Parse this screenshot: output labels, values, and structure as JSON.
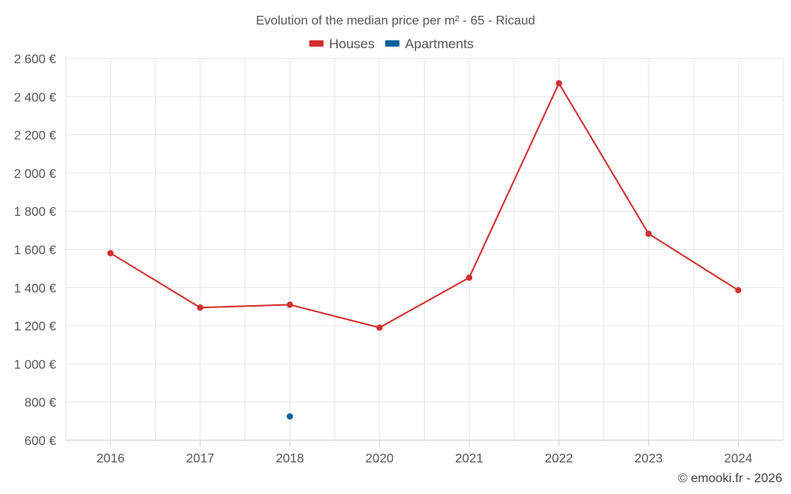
{
  "chart_data": {
    "type": "line",
    "title": "Evolution of the median price per m² - 65 - Ricaud",
    "categories": [
      "2016",
      "2017",
      "2018",
      "2020",
      "2021",
      "2022",
      "2023",
      "2024"
    ],
    "series": [
      {
        "name": "Houses",
        "color": "#d32f2f",
        "values": [
          1580,
          1295,
          1310,
          1190,
          1452,
          2470,
          1682,
          1386
        ]
      },
      {
        "name": "Apartments",
        "color": "#00629b",
        "values": [
          null,
          null,
          725,
          null,
          null,
          null,
          null,
          null
        ]
      }
    ],
    "ylim": [
      600,
      2600
    ],
    "yticks": [
      "2 600 €",
      "2 400 €",
      "2 200 €",
      "2 000 €",
      "1 800 €",
      "1 600 €",
      "1 400 €",
      "1 200 €",
      "1 000 €",
      "800 €",
      "600 €"
    ],
    "xlabel": "",
    "ylabel": "",
    "legend": "top-center",
    "grid": true,
    "credit": "© emooki.fr - 2026"
  }
}
